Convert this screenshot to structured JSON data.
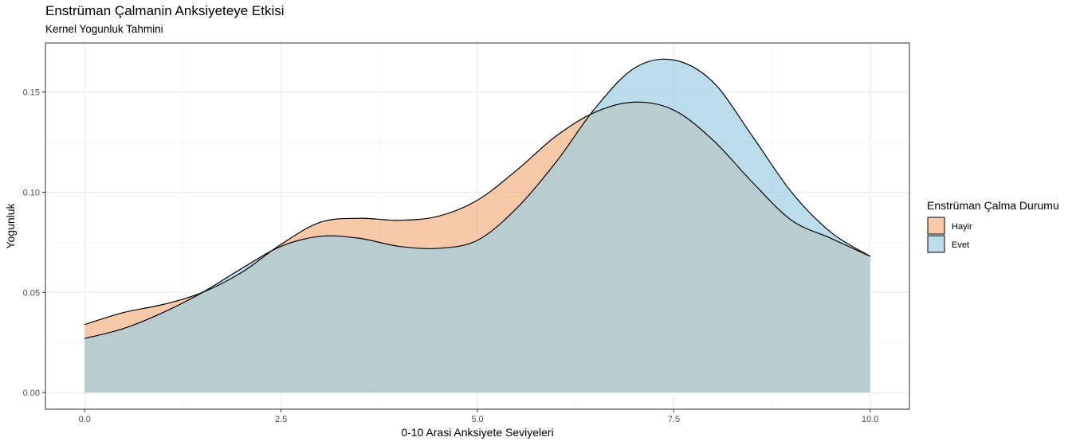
{
  "chart_data": {
    "type": "area",
    "title": "Enstrüman Çalmanin Anksiyeteye Etkisi",
    "subtitle": "Kernel Yogunluk Tahmini",
    "xlabel": "0-10 Arasi Anksiyete Seviyeleri",
    "ylabel": "Yogunluk",
    "xlim": [
      -0.5,
      10.5
    ],
    "ylim": [
      -0.0083,
      0.1745
    ],
    "x_ticks": [
      "0.0",
      "2.5",
      "5.0",
      "7.5",
      "10.0"
    ],
    "y_ticks": [
      "0.00",
      "0.05",
      "0.10",
      "0.15"
    ],
    "grid": true,
    "legend_title": "Enstrüman Çalma Durumu",
    "legend_position": "right",
    "series": [
      {
        "name": "Hayir",
        "color": "#f4b284",
        "x": [
          0,
          0.5,
          1,
          1.5,
          2,
          2.5,
          3,
          3.5,
          4,
          4.5,
          5,
          5.5,
          6,
          6.5,
          7,
          7.5,
          8,
          8.5,
          9,
          9.5,
          10
        ],
        "values": [
          0.034,
          0.04,
          0.044,
          0.05,
          0.06,
          0.074,
          0.085,
          0.087,
          0.086,
          0.088,
          0.096,
          0.111,
          0.128,
          0.14,
          0.145,
          0.141,
          0.126,
          0.105,
          0.086,
          0.077,
          0.068
        ]
      },
      {
        "name": "Evet",
        "color": "#9ecfe3",
        "x": [
          0,
          0.5,
          1,
          1.5,
          2,
          2.5,
          3,
          3.5,
          4,
          4.5,
          5,
          5.5,
          6,
          6.5,
          7,
          7.5,
          8,
          8.5,
          9,
          9.5,
          10
        ],
        "values": [
          0.027,
          0.032,
          0.04,
          0.05,
          0.062,
          0.073,
          0.078,
          0.077,
          0.073,
          0.072,
          0.076,
          0.092,
          0.115,
          0.142,
          0.162,
          0.166,
          0.155,
          0.128,
          0.1,
          0.08,
          0.068
        ]
      }
    ]
  }
}
